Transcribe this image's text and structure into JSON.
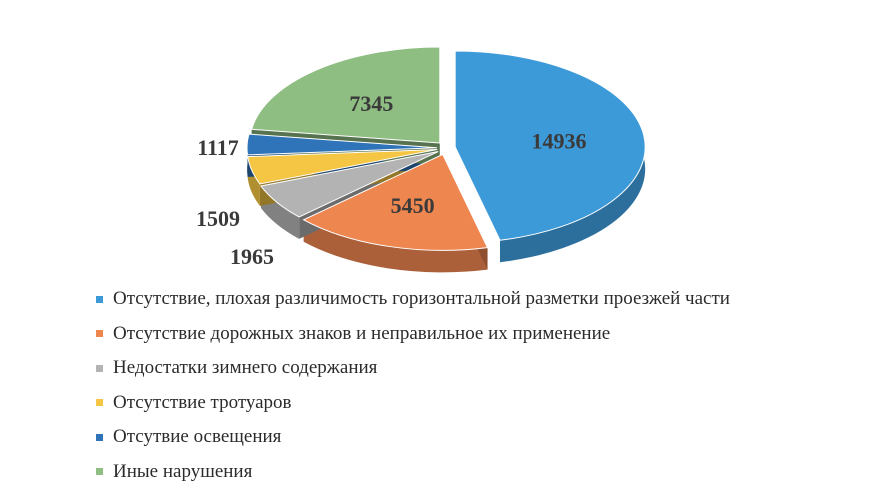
{
  "chart_data": {
    "type": "pie",
    "title": "",
    "style": "3d-exploded",
    "legend_position": "bottom",
    "slices": [
      {
        "label": "Отсутствие, плохая различимость горизонтальной разметки проезжей части",
        "value": 14936,
        "color": "#3d9ad8"
      },
      {
        "label": "Отсутствие дорожных знаков и неправильное их применение",
        "value": 5450,
        "color": "#ee8650"
      },
      {
        "label": "Недостатки зимнего содержания",
        "value": 1965,
        "color": "#b3b3b3"
      },
      {
        "label": "Отсутствие тротуаров",
        "value": 1509,
        "color": "#f5c644"
      },
      {
        "label": "Отсутвие освещения",
        "value": 1117,
        "color": "#2f73b8"
      },
      {
        "label": "Иные нарушения",
        "value": 7345,
        "color": "#8fbe82"
      }
    ]
  }
}
